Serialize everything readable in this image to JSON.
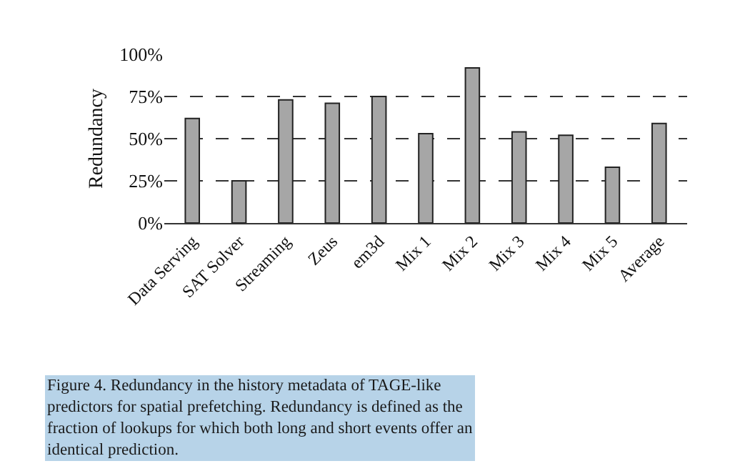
{
  "chart_data": {
    "type": "bar",
    "ylabel": "Redundancy",
    "categories": [
      "Data Serving",
      "SAT Solver",
      "Streaming",
      "Zeus",
      "em3d",
      "Mix 1",
      "Mix 2",
      "Mix 3",
      "Mix 4",
      "Mix 5",
      "Average"
    ],
    "values": [
      62,
      25,
      73,
      71,
      75,
      53,
      92,
      54,
      52,
      33,
      59
    ],
    "color": "#a6a6a6",
    "ylim": [
      0,
      100
    ],
    "yticks": [
      {
        "value": 0,
        "label": "0%"
      },
      {
        "value": 25,
        "label": "25%"
      },
      {
        "value": 50,
        "label": "50%"
      },
      {
        "value": 75,
        "label": "75%"
      },
      {
        "value": 100,
        "label": "100%"
      }
    ],
    "grid": "y",
    "annotations": [
      "Figure 4. Redundancy in the history metadata of TAGE-like predictors for spatial prefetching. Redundancy is defined as the fraction of lookups for which both long and short events offer an identical prediction."
    ]
  }
}
